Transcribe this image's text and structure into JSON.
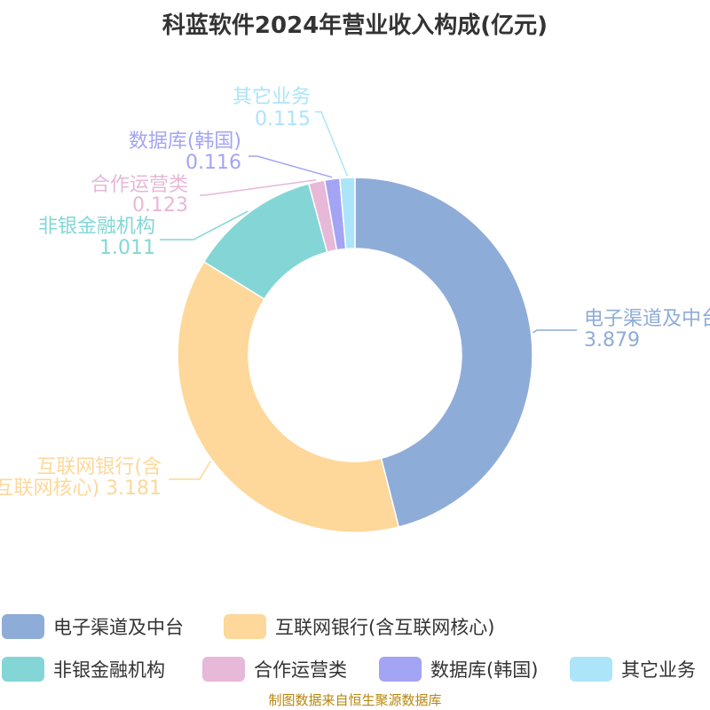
{
  "chart_data": {
    "type": "pie",
    "variant": "donut",
    "title": "科蓝软件2024年营业收入构成(亿元)",
    "unit": "亿元",
    "slices": [
      {
        "name": "电子渠道及中台",
        "value": 3.879,
        "value_text": "3.879",
        "color": "#8eacd8"
      },
      {
        "name": "互联网银行(含互联网核心)",
        "value": 3.181,
        "value_text": "3.181",
        "color": "#fdd89a"
      },
      {
        "name": "非银金融机构",
        "value": 1.011,
        "value_text": "1.011",
        "color": "#84d6d6"
      },
      {
        "name": "合作运营类",
        "value": 0.123,
        "value_text": "0.123",
        "color": "#e7b8d8"
      },
      {
        "name": "数据库(韩国)",
        "value": 0.116,
        "value_text": "0.116",
        "color": "#a4a4f4"
      },
      {
        "name": "其它业务",
        "value": 0.115,
        "value_text": "0.115",
        "color": "#ace4fa"
      }
    ],
    "legend_position": "bottom",
    "start_angle_deg": 0,
    "direction": "clockwise"
  },
  "source_note": "制图数据来自恒生聚源数据库"
}
